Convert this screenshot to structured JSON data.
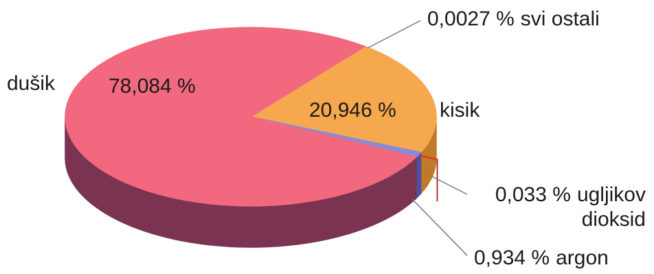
{
  "chart_data": {
    "type": "pie",
    "categories": [
      "svi ostali",
      "kisik",
      "ugljikov dioksid",
      "argon",
      "dušik"
    ],
    "values": [
      0.0027,
      20.946,
      0.033,
      0.934,
      78.084
    ],
    "value_labels": [
      "0,0027 %",
      "20,946 %",
      "0,033 %",
      "0,934 %",
      "78,084 %"
    ],
    "colors": [
      "#c060a8",
      "#f6a84e",
      "#e8202c",
      "#8a8ad8",
      "#f2687e"
    ],
    "side_colors": [
      "#80306a",
      "#c07a2a",
      "#b01018",
      "#5050a0",
      "#7a3452"
    ],
    "exploded": [
      false,
      false,
      true,
      false,
      false
    ]
  }
}
